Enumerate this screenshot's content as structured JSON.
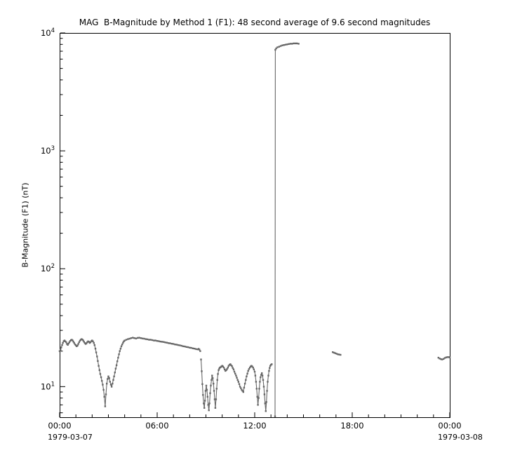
{
  "chart_data": {
    "type": "line",
    "title": "MAG  B-Magnitude by Method 1 (F1): 48 second average of 9.6 second magnitudes",
    "xlabel": "",
    "ylabel": "B-Magnitude (F1) (nT)",
    "line_color": "#666666",
    "marker": "square",
    "legend": "none",
    "grid": "off",
    "x_axis": {
      "range_hours": [
        0,
        24
      ],
      "start_label": "1979-03-07",
      "end_label": "1979-03-08",
      "tick_hours": [
        0,
        6,
        12,
        18,
        24
      ],
      "tick_labels": [
        "00:00",
        "06:00",
        "12:00",
        "18:00",
        "00:00"
      ],
      "minor_tick_every_hours": 1
    },
    "y_axis": {
      "scale": "log",
      "range": [
        5.5,
        10000
      ],
      "major_tick_exponents": [
        1,
        2,
        3,
        4
      ]
    },
    "segments": [
      [
        [
          0,
          20
        ],
        [
          0.05,
          20.5
        ],
        [
          0.1,
          21.5
        ],
        [
          0.15,
          22.5
        ],
        [
          0.2,
          23.5
        ],
        [
          0.25,
          24.3
        ],
        [
          0.3,
          24.6
        ],
        [
          0.35,
          24.2
        ],
        [
          0.4,
          23.8
        ],
        [
          0.45,
          23
        ],
        [
          0.5,
          22.6
        ],
        [
          0.55,
          23.2
        ],
        [
          0.6,
          23.8
        ],
        [
          0.65,
          24.4
        ],
        [
          0.7,
          24.8
        ],
        [
          0.75,
          25
        ],
        [
          0.8,
          24.6
        ],
        [
          0.85,
          24
        ],
        [
          0.9,
          23.4
        ],
        [
          0.95,
          22.8
        ],
        [
          1,
          22.4
        ],
        [
          1.05,
          22
        ],
        [
          1.1,
          22.3
        ],
        [
          1.15,
          23
        ],
        [
          1.2,
          23.8
        ],
        [
          1.25,
          24.5
        ],
        [
          1.3,
          25
        ],
        [
          1.35,
          25.3
        ],
        [
          1.4,
          25.1
        ],
        [
          1.45,
          24.6
        ],
        [
          1.5,
          24
        ],
        [
          1.55,
          23.4
        ],
        [
          1.6,
          23
        ],
        [
          1.65,
          23.3
        ],
        [
          1.7,
          23.8
        ],
        [
          1.75,
          24.2
        ],
        [
          1.8,
          24
        ],
        [
          1.85,
          23.5
        ],
        [
          1.9,
          23.8
        ],
        [
          1.95,
          24.3
        ],
        [
          2,
          24.6
        ],
        [
          2.05,
          24.2
        ],
        [
          2.1,
          23.5
        ],
        [
          2.15,
          22.5
        ],
        [
          2.2,
          21
        ],
        [
          2.25,
          19.5
        ],
        [
          2.3,
          18
        ],
        [
          2.35,
          16.5
        ],
        [
          2.4,
          15
        ],
        [
          2.45,
          13.8
        ],
        [
          2.5,
          12.8
        ],
        [
          2.55,
          12
        ],
        [
          2.6,
          11.2
        ],
        [
          2.65,
          10.4
        ],
        [
          2.7,
          9.4
        ],
        [
          2.75,
          8.2
        ],
        [
          2.8,
          6.8
        ],
        [
          2.85,
          8.6
        ],
        [
          2.9,
          10.6
        ],
        [
          2.95,
          11.6
        ],
        [
          3,
          12.2
        ],
        [
          3.05,
          11.8
        ],
        [
          3.1,
          11
        ],
        [
          3.15,
          10.4
        ],
        [
          3.2,
          10
        ],
        [
          3.25,
          10.6
        ],
        [
          3.3,
          11.4
        ],
        [
          3.35,
          12.2
        ],
        [
          3.4,
          13.2
        ],
        [
          3.45,
          14.2
        ],
        [
          3.5,
          15.2
        ],
        [
          3.55,
          16.4
        ],
        [
          3.6,
          17.6
        ],
        [
          3.65,
          18.8
        ],
        [
          3.7,
          20
        ],
        [
          3.75,
          21
        ],
        [
          3.8,
          22
        ],
        [
          3.85,
          22.8
        ],
        [
          3.9,
          23.6
        ],
        [
          3.95,
          24.2
        ],
        [
          4,
          24.6
        ],
        [
          4.1,
          25
        ],
        [
          4.2,
          25.3
        ],
        [
          4.3,
          25.5
        ],
        [
          4.4,
          25.8
        ],
        [
          4.5,
          26
        ],
        [
          4.6,
          25.8
        ],
        [
          4.7,
          25.6
        ],
        [
          4.8,
          25.9
        ],
        [
          4.9,
          26
        ],
        [
          5,
          25.8
        ],
        [
          5.1,
          25.6
        ],
        [
          5.2,
          25.5
        ],
        [
          5.3,
          25.3
        ],
        [
          5.4,
          25.2
        ],
        [
          5.5,
          25
        ],
        [
          5.6,
          25
        ],
        [
          5.7,
          24.8
        ],
        [
          5.8,
          24.6
        ],
        [
          5.9,
          24.6
        ],
        [
          6,
          24.4
        ],
        [
          6.1,
          24.3
        ],
        [
          6.2,
          24.1
        ],
        [
          6.3,
          24
        ],
        [
          6.4,
          23.9
        ],
        [
          6.5,
          23.7
        ],
        [
          6.6,
          23.6
        ],
        [
          6.7,
          23.4
        ],
        [
          6.8,
          23.3
        ],
        [
          6.9,
          23.1
        ],
        [
          7,
          23
        ],
        [
          7.1,
          22.8
        ],
        [
          7.2,
          22.7
        ],
        [
          7.3,
          22.5
        ],
        [
          7.4,
          22.4
        ],
        [
          7.5,
          22.2
        ],
        [
          7.6,
          22
        ],
        [
          7.7,
          21.9
        ],
        [
          7.8,
          21.7
        ],
        [
          7.9,
          21.6
        ],
        [
          8,
          21.4
        ],
        [
          8.1,
          21.3
        ],
        [
          8.2,
          21.1
        ],
        [
          8.3,
          21
        ],
        [
          8.4,
          20.8
        ],
        [
          8.5,
          20.7
        ],
        [
          8.55,
          20.9
        ],
        [
          8.6,
          20.6
        ],
        [
          8.65,
          20
        ]
      ],
      [
        [
          8.7,
          17
        ],
        [
          8.74,
          13.5
        ],
        [
          8.78,
          10.5
        ],
        [
          8.82,
          8.5
        ],
        [
          8.86,
          7.2
        ],
        [
          8.9,
          6.6
        ],
        [
          8.94,
          7.6
        ],
        [
          8.98,
          9.2
        ],
        [
          9.02,
          10.2
        ],
        [
          9.06,
          9.4
        ],
        [
          9.1,
          8.2
        ],
        [
          9.14,
          7
        ],
        [
          9.18,
          6.3
        ],
        [
          9.22,
          7.2
        ],
        [
          9.26,
          8.8
        ],
        [
          9.3,
          10.2
        ],
        [
          9.34,
          11.4
        ],
        [
          9.38,
          12.4
        ],
        [
          9.42,
          11.8
        ],
        [
          9.46,
          10.6
        ],
        [
          9.5,
          9.2
        ],
        [
          9.54,
          7.8
        ],
        [
          9.58,
          6.6
        ],
        [
          9.62,
          7.8
        ],
        [
          9.66,
          9.6
        ],
        [
          9.7,
          11.4
        ],
        [
          9.74,
          12.8
        ],
        [
          9.78,
          13.8
        ],
        [
          9.82,
          14.2
        ],
        [
          9.86,
          14.5
        ],
        [
          9.9,
          14.6
        ],
        [
          9.95,
          14.8
        ],
        [
          10,
          15
        ],
        [
          10.05,
          14.8
        ],
        [
          10.1,
          14.5
        ],
        [
          10.15,
          14
        ],
        [
          10.2,
          13.6
        ],
        [
          10.25,
          13.8
        ],
        [
          10.3,
          14.1
        ],
        [
          10.35,
          14.5
        ],
        [
          10.4,
          15
        ],
        [
          10.45,
          15.3
        ],
        [
          10.5,
          15.5
        ],
        [
          10.55,
          15.2
        ],
        [
          10.6,
          14.9
        ],
        [
          10.65,
          14.4
        ],
        [
          10.7,
          14
        ],
        [
          10.75,
          13.4
        ],
        [
          10.8,
          12.9
        ],
        [
          10.85,
          12.4
        ],
        [
          10.9,
          11.9
        ],
        [
          10.95,
          11.4
        ],
        [
          11,
          11
        ],
        [
          11.05,
          10.5
        ],
        [
          11.1,
          10
        ],
        [
          11.15,
          9.7
        ],
        [
          11.2,
          9.4
        ],
        [
          11.25,
          9.2
        ],
        [
          11.3,
          9
        ],
        [
          11.35,
          9.8
        ],
        [
          11.4,
          10.6
        ],
        [
          11.45,
          11.4
        ],
        [
          11.5,
          12.2
        ],
        [
          11.55,
          12.9
        ],
        [
          11.6,
          13.6
        ],
        [
          11.65,
          14.1
        ],
        [
          11.7,
          14.5
        ],
        [
          11.75,
          14.8
        ],
        [
          11.8,
          15
        ],
        [
          11.85,
          14.8
        ],
        [
          11.9,
          14.5
        ],
        [
          11.95,
          14
        ],
        [
          12,
          13.4
        ],
        [
          12.04,
          12.4
        ],
        [
          12.08,
          11
        ],
        [
          12.12,
          9.6
        ],
        [
          12.16,
          8.2
        ],
        [
          12.2,
          7
        ],
        [
          12.24,
          8
        ],
        [
          12.28,
          9.6
        ],
        [
          12.32,
          11
        ],
        [
          12.36,
          12
        ],
        [
          12.4,
          12.6
        ],
        [
          12.44,
          13
        ],
        [
          12.48,
          12.4
        ],
        [
          12.52,
          11.4
        ],
        [
          12.56,
          10
        ],
        [
          12.6,
          8.6
        ],
        [
          12.64,
          7.2
        ],
        [
          12.68,
          6.2
        ],
        [
          12.72,
          7.4
        ],
        [
          12.76,
          9.2
        ],
        [
          12.8,
          11
        ],
        [
          12.84,
          12.4
        ],
        [
          12.88,
          13.6
        ],
        [
          12.92,
          14.4
        ],
        [
          12.96,
          15
        ],
        [
          13,
          15.3
        ],
        [
          13.05,
          15.5
        ]
      ],
      [
        [
          13.25,
          5.6
        ],
        [
          13.27,
          7200
        ],
        [
          13.32,
          7400
        ],
        [
          13.4,
          7550
        ],
        [
          13.5,
          7650
        ],
        [
          13.6,
          7750
        ],
        [
          13.7,
          7850
        ],
        [
          13.8,
          7900
        ],
        [
          13.9,
          7950
        ],
        [
          14,
          8000
        ],
        [
          14.1,
          8050
        ],
        [
          14.2,
          8100
        ],
        [
          14.3,
          8100
        ],
        [
          14.4,
          8150
        ],
        [
          14.5,
          8150
        ],
        [
          14.6,
          8150
        ],
        [
          14.7,
          8100
        ]
      ],
      [
        [
          16.8,
          19.6
        ],
        [
          16.88,
          19.4
        ],
        [
          16.96,
          19.2
        ],
        [
          17.04,
          19
        ],
        [
          17.12,
          18.8
        ],
        [
          17.2,
          18.7
        ],
        [
          17.28,
          18.6
        ]
      ],
      [
        [
          23.3,
          17.6
        ],
        [
          23.38,
          17.3
        ],
        [
          23.46,
          17.1
        ],
        [
          23.54,
          17
        ],
        [
          23.62,
          17.2
        ],
        [
          23.7,
          17.5
        ],
        [
          23.78,
          17.7
        ],
        [
          23.86,
          17.8
        ],
        [
          23.94,
          17.8
        ],
        [
          24,
          17.7
        ]
      ]
    ]
  }
}
